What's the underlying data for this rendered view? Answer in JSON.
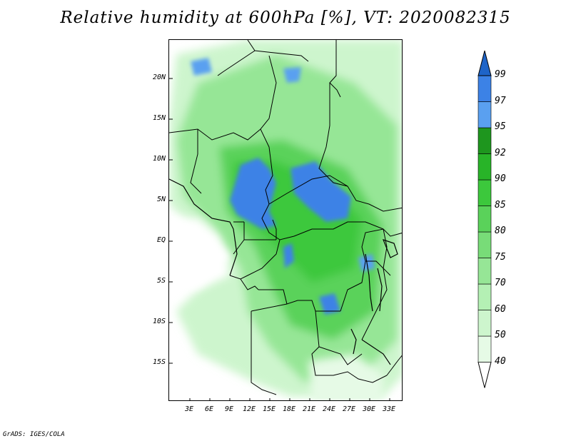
{
  "title": "Relative humidity at 600hPa [%], VT: 2020082315",
  "credit": "GrADS: IGES/COLA",
  "map": {
    "lat_labels": [
      "20N",
      "15N",
      "10N",
      "5N",
      "EQ",
      "5S",
      "10S",
      "15S"
    ],
    "lat_values": [
      20,
      15,
      10,
      5,
      0,
      -5,
      -10,
      -15
    ],
    "lon_labels": [
      "3E",
      "6E",
      "9E",
      "12E",
      "15E",
      "18E",
      "21E",
      "24E",
      "27E",
      "30E",
      "33E"
    ],
    "lon_values": [
      3,
      6,
      9,
      12,
      15,
      18,
      21,
      24,
      27,
      30,
      33
    ],
    "variable": "Relative humidity",
    "level": "600hPa",
    "units": "%"
  },
  "colorbar": {
    "levels": [
      "40",
      "50",
      "60",
      "70",
      "75",
      "80",
      "85",
      "90",
      "92",
      "95",
      "97",
      "99"
    ],
    "colors": [
      "#ffffff",
      "#e6fae6",
      "#cdf5cd",
      "#b4f0b4",
      "#96e696",
      "#78dc78",
      "#5ad25a",
      "#3cc83c",
      "#28b428",
      "#1e961e",
      "#5aa0f0",
      "#3c82e6",
      "#1e64c8"
    ]
  }
}
